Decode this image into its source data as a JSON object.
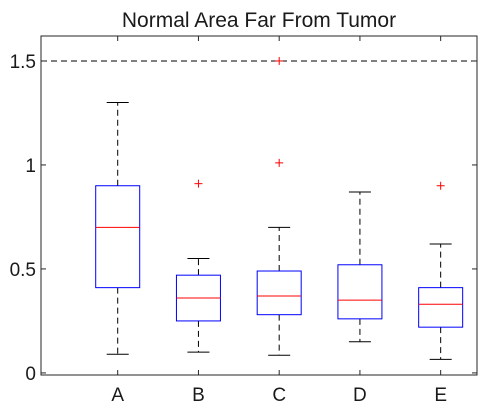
{
  "chart_data": {
    "type": "box",
    "title": "Normal Area Far From Tumor",
    "xlabel": "",
    "ylabel": "",
    "categories": [
      "A",
      "B",
      "C",
      "D",
      "E"
    ],
    "ylim": [
      -0.01,
      1.62
    ],
    "yticks": [
      0,
      0.5,
      1,
      1.5
    ],
    "ytick_labels": [
      "0",
      "0.5",
      "1",
      "1.5"
    ],
    "grid": false,
    "reference_line": {
      "y": 1.5,
      "style": "dashed"
    },
    "boxes": [
      {
        "name": "A",
        "whisker_low": 0.09,
        "q1": 0.41,
        "median": 0.7,
        "q3": 0.9,
        "whisker_high": 1.3,
        "outliers": []
      },
      {
        "name": "B",
        "whisker_low": 0.1,
        "q1": 0.25,
        "median": 0.36,
        "q3": 0.47,
        "whisker_high": 0.55,
        "outliers": [
          0.91
        ]
      },
      {
        "name": "C",
        "whisker_low": 0.085,
        "q1": 0.28,
        "median": 0.37,
        "q3": 0.49,
        "whisker_high": 0.7,
        "outliers": [
          1.01,
          1.5
        ]
      },
      {
        "name": "D",
        "whisker_low": 0.15,
        "q1": 0.26,
        "median": 0.35,
        "q3": 0.52,
        "whisker_high": 0.87,
        "outliers": []
      },
      {
        "name": "E",
        "whisker_low": 0.065,
        "q1": 0.22,
        "median": 0.33,
        "q3": 0.41,
        "whisker_high": 0.62,
        "outliers": [
          0.9
        ]
      }
    ],
    "colors": {
      "box": "#0000ff",
      "median": "#ff0000",
      "whisker": "#000000",
      "outlier": "#ff0000",
      "axis": "#262626"
    }
  }
}
